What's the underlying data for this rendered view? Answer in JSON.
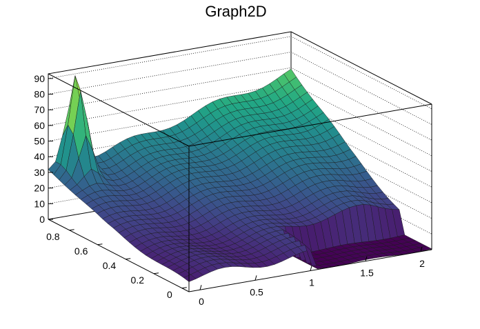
{
  "chart_data": {
    "type": "surface",
    "title": "Graph2D",
    "x_ticks": [
      "0",
      "0.5",
      "1",
      "1.5",
      "2"
    ],
    "y_ticks": [
      "0",
      "0.2",
      "0.4",
      "0.6",
      "0.8"
    ],
    "z_ticks": [
      "0",
      "10",
      "20",
      "30",
      "40",
      "50",
      "60",
      "70",
      "80",
      "90"
    ],
    "xlim": [
      -0.1,
      2.1
    ],
    "ylim": [
      -0.05,
      0.95
    ],
    "zlim": [
      0,
      93
    ],
    "grid": true,
    "colormap": "viridis",
    "peak": {
      "x": 0.1,
      "y": 0.9,
      "z": 92
    },
    "notch": {
      "x_from": 1.0,
      "y_to": 0.18
    }
  }
}
